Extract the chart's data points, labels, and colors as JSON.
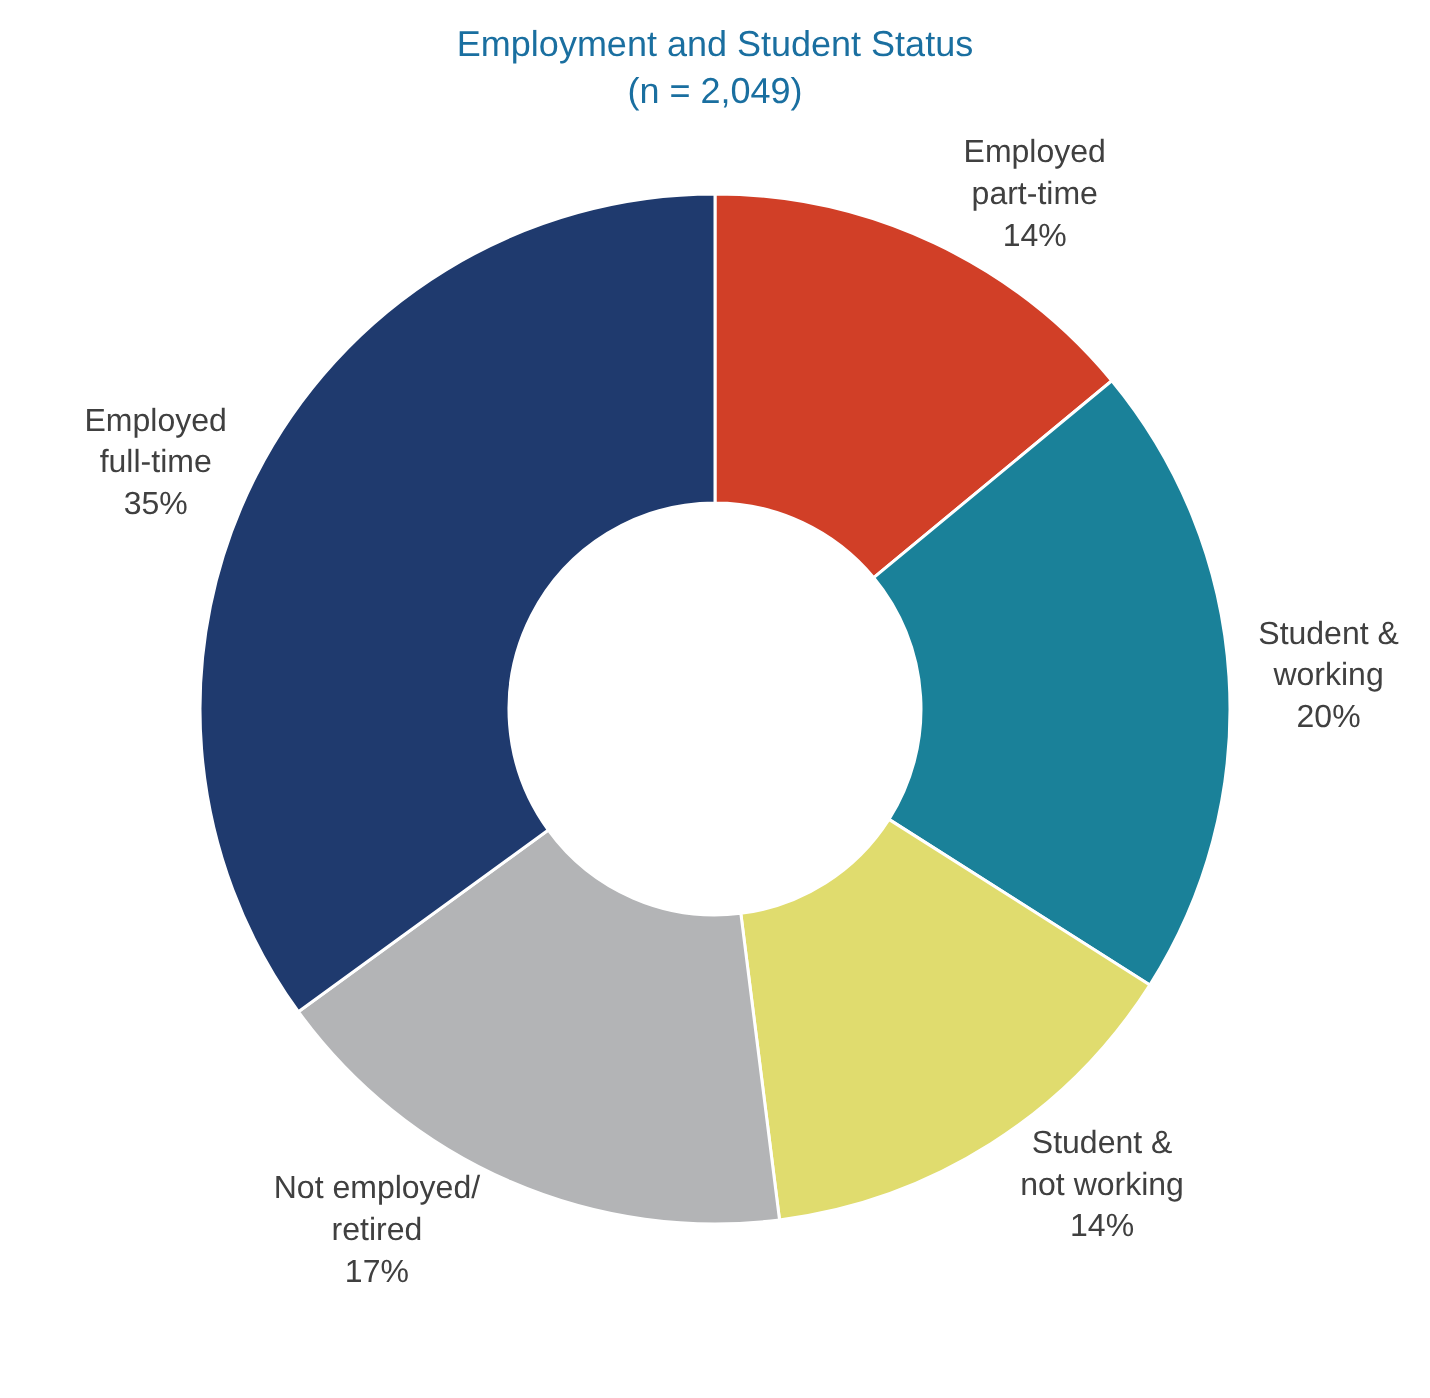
{
  "chart_data": {
    "type": "donut",
    "title": "Employment and Student Status\n(n = 2,049)",
    "categories": [
      "Employed\npart-time",
      "Student &\nworking",
      "Student &\nnot working",
      "Not employed/\nretired",
      "Employed\nfull-time"
    ],
    "values": [
      14,
      20,
      14,
      17,
      35
    ],
    "value_labels": [
      "14%",
      "20%",
      "14%",
      "17%",
      "35%"
    ],
    "colors": [
      "#d13f27",
      "#1a8199",
      "#e0dc6e",
      "#b3b4b6",
      "#1f3a6e"
    ],
    "legend": false
  }
}
